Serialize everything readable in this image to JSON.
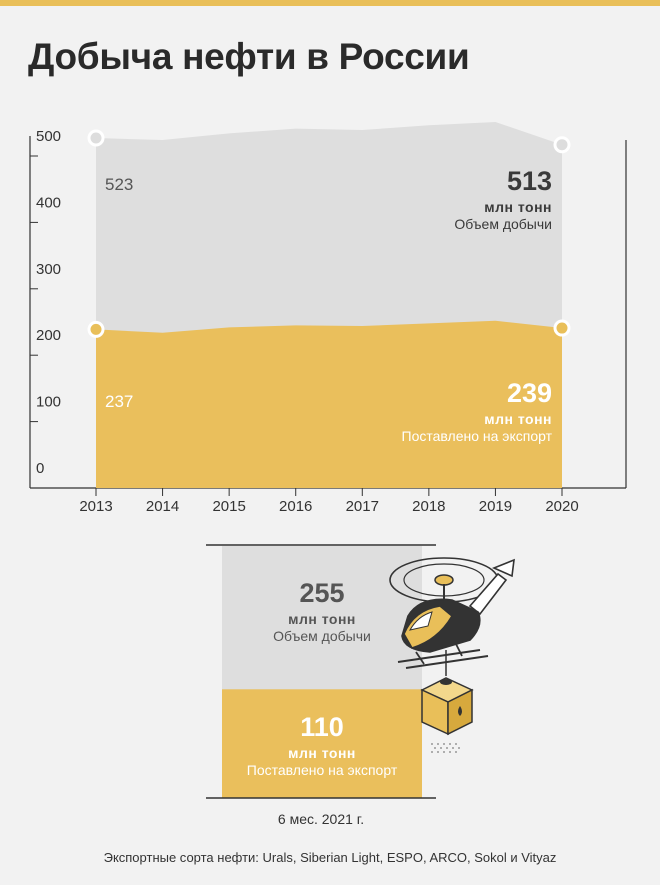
{
  "title": "Добыча нефти в России",
  "chart_data": [
    {
      "type": "area",
      "x": [
        "2013",
        "2014",
        "2015",
        "2016",
        "2017",
        "2018",
        "2019",
        "2020"
      ],
      "series": [
        {
          "values": [
            523,
            520,
            530,
            537,
            535,
            542,
            547,
            513
          ],
          "color": "#dedede"
        },
        {
          "values": [
            237,
            232,
            240,
            243,
            242,
            246,
            250,
            239
          ],
          "color": "#eabf5c"
        }
      ],
      "ylim": [
        0,
        560
      ],
      "yticks": [
        0,
        100,
        200,
        300,
        400,
        500
      ],
      "ytick_labels": [
        "0",
        "100",
        "200",
        "300",
        "400",
        "500"
      ],
      "annotations": {
        "production_start": "523",
        "export_start": "237",
        "production_end": {
          "value": "513",
          "unit": "млн тонн",
          "label": "Объем добычи"
        },
        "export_end": {
          "value": "239",
          "unit": "млн тонн",
          "label": "Поставлено на экспорт"
        }
      }
    },
    {
      "type": "bar",
      "categories": [
        "6 мес. 2021 г."
      ],
      "series": [
        {
          "values": [
            255
          ],
          "color": "#dedede"
        },
        {
          "values": [
            110
          ],
          "color": "#eabf5c"
        }
      ],
      "annotations": {
        "production": {
          "value": "255",
          "unit": "млн тонн",
          "label": "Объем добычи"
        },
        "export": {
          "value": "110",
          "unit": "млн тонн",
          "label": "Поставлено на экспорт"
        }
      }
    }
  ],
  "footnote": "Экспортные сорта нефти: Urals, Siberian Light, ESPO, ARCO, Sokol и Vityaz",
  "colors": {
    "accent": "#e9bf59",
    "production": "#dedede",
    "export": "#eabf5c",
    "text": "#333333"
  },
  "icons": {
    "illustration": "helicopter-with-oil-crate-icon"
  }
}
